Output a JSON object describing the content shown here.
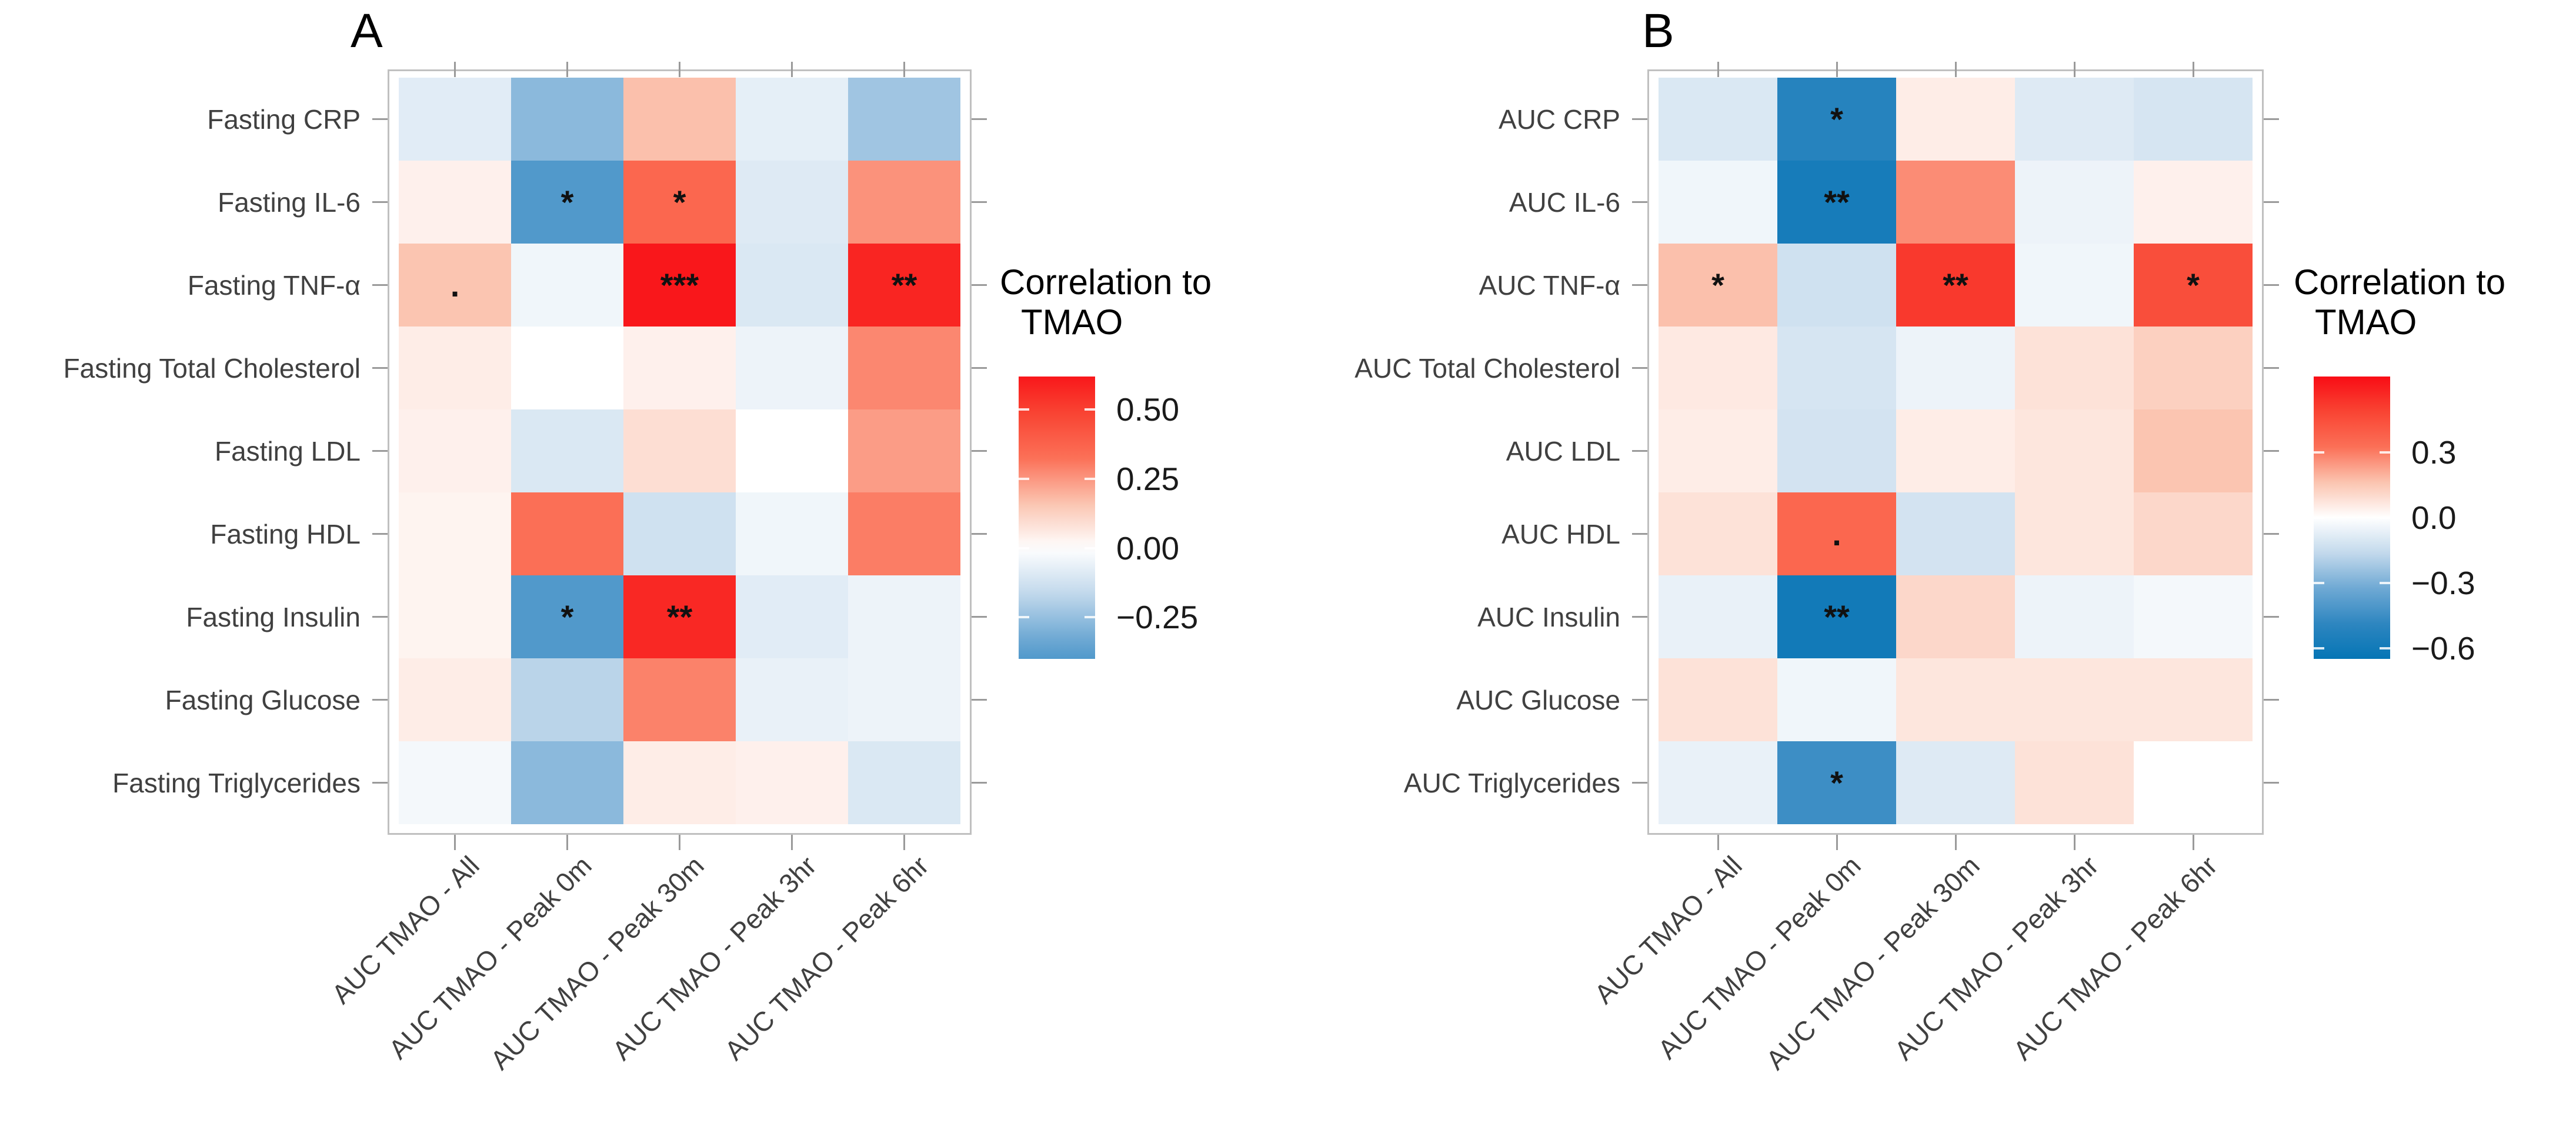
{
  "chart_data": [
    {
      "type": "heatmap",
      "title": "A",
      "rows": [
        "Fasting CRP",
        "Fasting IL-6",
        "Fasting TNF-α",
        "Fasting Total Cholesterol",
        "Fasting LDL",
        "Fasting HDL",
        "Fasting Insulin",
        "Fasting Glucose",
        "Fasting Triglycerides"
      ],
      "columns": [
        "AUC TMAO - All",
        "AUC TMAO - Peak 0m",
        "AUC TMAO - Peak 30m",
        "AUC TMAO - Peak 3hr",
        "AUC TMAO - Peak 6hr"
      ],
      "values": [
        [
          -0.08,
          -0.27,
          0.17,
          -0.07,
          -0.23
        ],
        [
          0.04,
          -0.4,
          0.36,
          -0.09,
          0.26
        ],
        [
          0.16,
          -0.04,
          0.62,
          -0.1,
          0.58
        ],
        [
          0.05,
          0.0,
          0.04,
          -0.05,
          0.28
        ],
        [
          0.04,
          -0.1,
          0.09,
          0.0,
          0.24
        ],
        [
          0.03,
          0.33,
          -0.13,
          -0.04,
          0.3
        ],
        [
          0.03,
          -0.4,
          0.57,
          -0.08,
          -0.05
        ],
        [
          0.05,
          -0.18,
          0.29,
          -0.06,
          -0.05
        ],
        [
          -0.03,
          -0.27,
          0.05,
          0.04,
          -0.1
        ]
      ],
      "significance": [
        [
          "",
          "",
          "",
          "",
          ""
        ],
        [
          "",
          "*",
          "*",
          "",
          ""
        ],
        [
          ".",
          "",
          "***",
          "",
          "**"
        ],
        [
          "",
          "",
          "",
          "",
          ""
        ],
        [
          "",
          "",
          "",
          "",
          ""
        ],
        [
          "",
          "",
          "",
          "",
          ""
        ],
        [
          "",
          "*",
          "**",
          "",
          ""
        ],
        [
          "",
          "",
          "",
          "",
          ""
        ],
        [
          "",
          "",
          "",
          "",
          ""
        ]
      ],
      "legend": {
        "title_line1": "Correlation to",
        "title_line2": "TMAO",
        "tick_labels": [
          "0.50",
          "0.25",
          "0.00",
          "−0.25"
        ],
        "tick_values": [
          0.5,
          0.25,
          0.0,
          -0.25
        ],
        "bar_top_value": 0.62,
        "bar_bottom_value": -0.4
      }
    },
    {
      "type": "heatmap",
      "title": "B",
      "rows": [
        "AUC CRP",
        "AUC IL-6",
        "AUC TNF-α",
        "AUC Total Cholesterol",
        "AUC LDL",
        "AUC HDL",
        "AUC Insulin",
        "AUC Glucose",
        "AUC Triglycerides"
      ],
      "columns": [
        "AUC TMAO - All",
        "AUC TMAO - Peak 0m",
        "AUC TMAO - Peak 30m",
        "AUC TMAO - Peak 3hr",
        "AUC TMAO - Peak 6hr"
      ],
      "values": [
        [
          -0.1,
          -0.52,
          0.05,
          -0.09,
          -0.11
        ],
        [
          -0.04,
          -0.58,
          0.27,
          -0.05,
          0.04
        ],
        [
          0.17,
          -0.13,
          0.52,
          -0.04,
          0.45
        ],
        [
          0.06,
          -0.11,
          -0.05,
          0.08,
          0.13
        ],
        [
          0.05,
          -0.12,
          0.05,
          0.07,
          0.16
        ],
        [
          0.08,
          0.36,
          -0.12,
          0.07,
          0.11
        ],
        [
          -0.06,
          -0.6,
          0.11,
          -0.05,
          -0.03
        ],
        [
          0.08,
          -0.04,
          0.07,
          0.07,
          0.07
        ],
        [
          -0.06,
          -0.45,
          -0.09,
          0.08,
          0.0
        ]
      ],
      "significance": [
        [
          "",
          "*",
          "",
          "",
          ""
        ],
        [
          "",
          "**",
          "",
          "",
          ""
        ],
        [
          "*",
          "",
          "**",
          "",
          "*"
        ],
        [
          "",
          "",
          "",
          "",
          ""
        ],
        [
          "",
          "",
          "",
          "",
          ""
        ],
        [
          "",
          ".",
          "",
          "",
          ""
        ],
        [
          "",
          "**",
          "",
          "",
          ""
        ],
        [
          "",
          "",
          "",
          "",
          ""
        ],
        [
          "",
          "*",
          "",
          "",
          ""
        ]
      ],
      "legend": {
        "title_line1": "Correlation to",
        "title_line2": "TMAO",
        "tick_labels": [
          "0.3",
          "0.0",
          "−0.3",
          "−0.6"
        ],
        "tick_values": [
          0.3,
          0.0,
          -0.3,
          -0.6
        ],
        "bar_top_value": 0.65,
        "bar_bottom_value": -0.65
      }
    }
  ],
  "colors": {
    "positive_high": "#f90d15",
    "negative_low": "#0575b5",
    "midpoint": "#ffffff",
    "panel_border": "#c0c0c0",
    "axis_tick": "#9a9a9a",
    "label_text": "#404040"
  }
}
